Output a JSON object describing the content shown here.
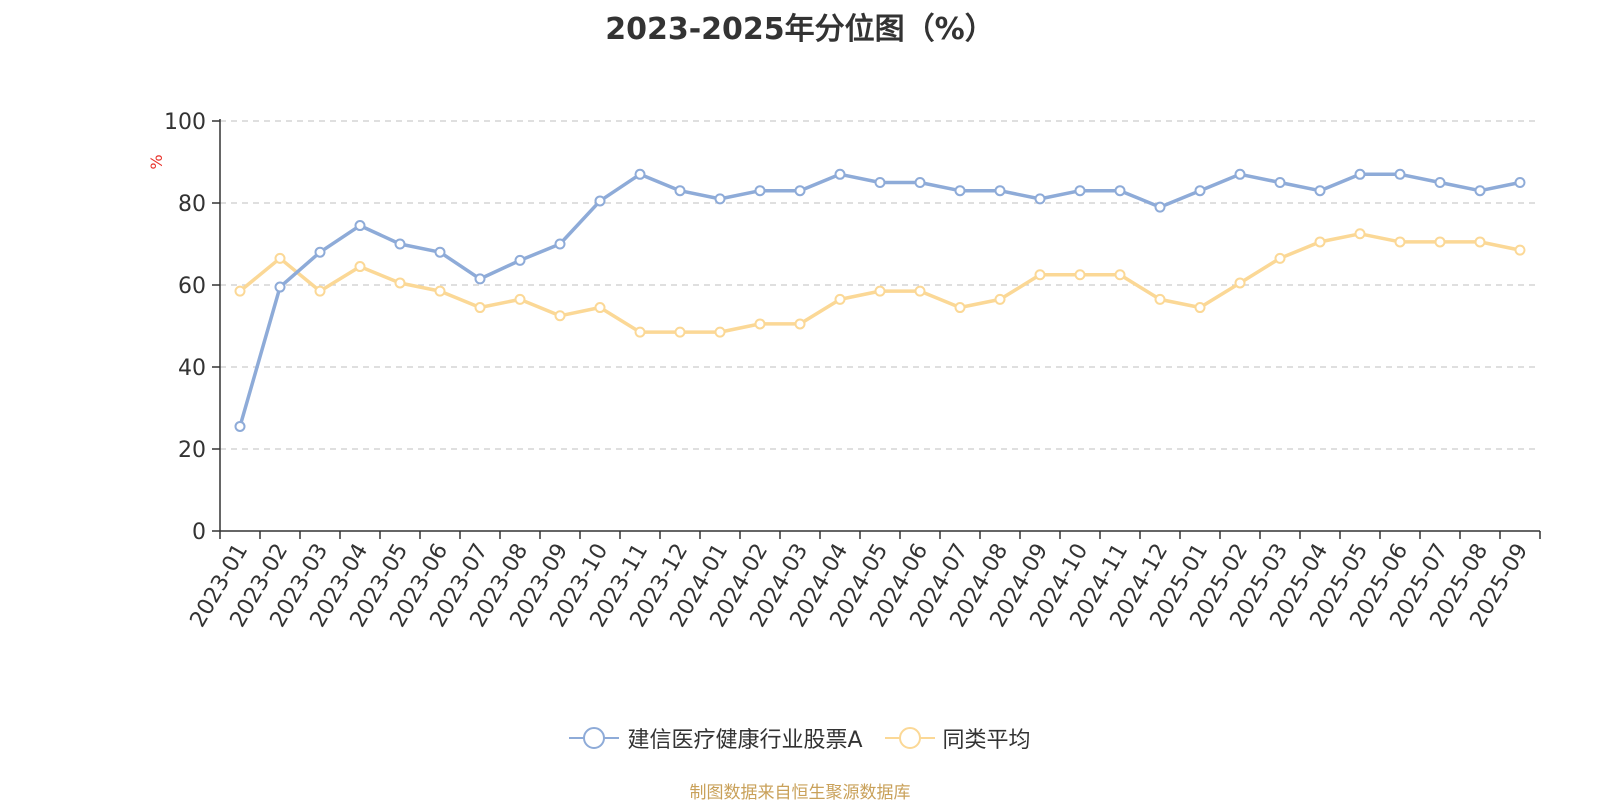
{
  "chart_data": {
    "type": "line",
    "title": "2023-2025年分位图（%）",
    "ylabel": "%",
    "ylim": [
      0,
      100
    ],
    "yticks": [
      0,
      20,
      40,
      60,
      80,
      100
    ],
    "grid": true,
    "legend_position": "bottom-center",
    "categories": [
      "2023-01",
      "2023-02",
      "2023-03",
      "2023-04",
      "2023-05",
      "2023-06",
      "2023-07",
      "2023-08",
      "2023-09",
      "2023-10",
      "2023-11",
      "2023-12",
      "2024-01",
      "2024-02",
      "2024-03",
      "2024-04",
      "2024-05",
      "2024-06",
      "2024-07",
      "2024-08",
      "2024-09",
      "2024-10",
      "2024-11",
      "2024-12",
      "2025-01",
      "2025-02",
      "2025-03",
      "2025-04",
      "2025-05",
      "2025-06",
      "2025-07",
      "2025-08",
      "2025-09"
    ],
    "series": [
      {
        "name": "建信医疗健康行业股票A",
        "color": "#8eabd8",
        "values": [
          25.5,
          59.5,
          68,
          74.5,
          70,
          68,
          61.5,
          66,
          70,
          80.5,
          87,
          83,
          81,
          83,
          83,
          87,
          85,
          85,
          83,
          83,
          81,
          83,
          83,
          79,
          83,
          87,
          85,
          83,
          87,
          87,
          85,
          83,
          85
        ]
      },
      {
        "name": "同类平均",
        "color": "#fbd896",
        "values": [
          58.5,
          66.5,
          58.5,
          64.5,
          60.5,
          58.5,
          54.5,
          56.5,
          52.5,
          54.5,
          48.5,
          48.5,
          48.5,
          50.5,
          50.5,
          56.5,
          58.5,
          58.5,
          54.5,
          56.5,
          62.5,
          62.5,
          62.5,
          56.5,
          54.5,
          60.5,
          66.5,
          70.5,
          72.5,
          70.5,
          70.5,
          70.5,
          68.5
        ]
      }
    ]
  },
  "source_note": "制图数据来自恒生聚源数据库",
  "colors": {
    "title": "#333333",
    "axis": "#333333",
    "grid": "#cccccc",
    "ylabel": "#e8322b",
    "source": "#c9a15a"
  }
}
